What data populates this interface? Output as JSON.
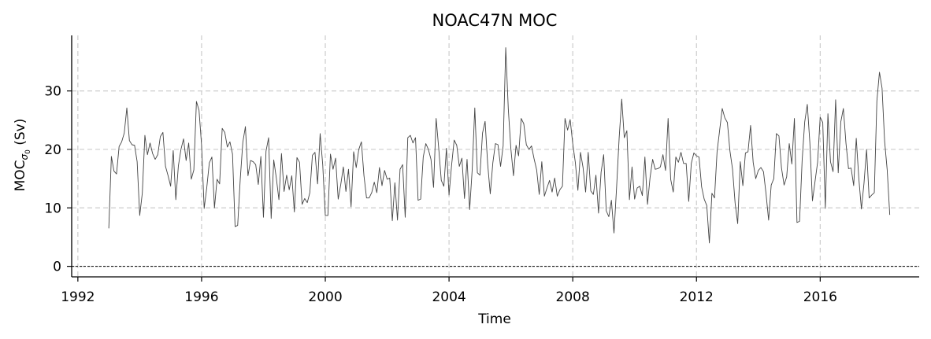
{
  "chart_data": {
    "type": "line",
    "title": "NOAC47N MOC",
    "xlabel": "Time",
    "ylabel": {
      "main": "MOC",
      "sub": "σ",
      "subsub": "0",
      "unit": " (Sv)"
    },
    "xlim": [
      1991.8,
      2019.2
    ],
    "ylim": [
      -1.8,
      39.5
    ],
    "xticks": [
      1992,
      1996,
      2000,
      2004,
      2008,
      2012,
      2016
    ],
    "yticks": [
      0,
      10,
      20,
      30
    ],
    "grid": true,
    "zero_line": 0,
    "colors": {
      "line": "#444444",
      "grid": "#cccccc",
      "zero": "#000000"
    },
    "series": [
      {
        "x_start": 1993.0,
        "x_step": 0.08333,
        "values": [
          6.5,
          18.8,
          16.3,
          15.8,
          20.5,
          21.3,
          22.8,
          27.1,
          21.5,
          20.8,
          20.7,
          17.9,
          8.7,
          12.5,
          22.4,
          19.1,
          21.1,
          19.3,
          18.3,
          19.1,
          22.2,
          22.9,
          17.1,
          15.5,
          13.7,
          19.8,
          11.4,
          17.2,
          20.0,
          21.8,
          18.1,
          21.1,
          14.9,
          16.5,
          28.2,
          26.7,
          20.7,
          9.9,
          13.4,
          17.7,
          18.7,
          10.0,
          14.9,
          14.1,
          23.6,
          22.9,
          20.4,
          21.3,
          19.2,
          6.8,
          7.0,
          14.9,
          21.2,
          23.9,
          15.5,
          18.1,
          17.9,
          17.4,
          14.0,
          18.8,
          8.4,
          19.7,
          22.0,
          8.2,
          18.2,
          15.1,
          11.4,
          19.3,
          12.8,
          15.6,
          13.1,
          15.5,
          9.3,
          18.6,
          17.8,
          10.6,
          11.6,
          10.9,
          12.6,
          19.0,
          19.5,
          14.1,
          22.7,
          17.4,
          8.7,
          8.7,
          19.2,
          16.6,
          18.5,
          11.5,
          14.0,
          17.0,
          12.8,
          16.6,
          10.2,
          19.6,
          16.9,
          20.0,
          21.3,
          15.5,
          11.7,
          11.7,
          12.6,
          14.4,
          12.6,
          16.9,
          13.8,
          16.4,
          14.9,
          15.1,
          7.8,
          14.3,
          7.9,
          16.6,
          17.4,
          8.4,
          22.0,
          22.4,
          21.1,
          22.0,
          11.3,
          11.5,
          18.7,
          21.0,
          20.0,
          18.3,
          13.5,
          25.3,
          20.2,
          14.7,
          13.7,
          20.2,
          12.2,
          17.3,
          21.6,
          20.7,
          17.1,
          18.5,
          11.6,
          18.3,
          9.7,
          16.6,
          27.1,
          16.0,
          15.6,
          22.8,
          24.8,
          17.5,
          12.4,
          17.7,
          21.0,
          20.8,
          17.1,
          20.6,
          37.4,
          26.9,
          20.1,
          15.5,
          20.7,
          18.9,
          25.3,
          24.4,
          20.8,
          20.0,
          20.6,
          18.4,
          16.5,
          12.3,
          17.9,
          12.0,
          13.4,
          14.7,
          12.7,
          15.1,
          12.0,
          13.1,
          13.7,
          25.3,
          23.3,
          25.1,
          21.0,
          17.8,
          13.0,
          19.5,
          16.9,
          12.7,
          19.5,
          12.9,
          12.3,
          15.6,
          9.1,
          16.1,
          19.1,
          9.5,
          8.5,
          11.3,
          5.7,
          13.4,
          21.9,
          28.6,
          22.0,
          23.2,
          11.4,
          17.0,
          11.5,
          13.4,
          13.7,
          12.1,
          18.7,
          10.6,
          15.2,
          18.3,
          16.6,
          16.7,
          17.0,
          19.1,
          16.4,
          25.3,
          14.9,
          12.7,
          18.7,
          17.8,
          19.5,
          17.6,
          17.6,
          11.1,
          17.6,
          19.4,
          18.9,
          18.7,
          13.6,
          11.5,
          10.4,
          4.0,
          12.5,
          11.7,
          19.6,
          23.3,
          27.0,
          25.4,
          24.6,
          19.7,
          16.6,
          10.8,
          7.3,
          17.9,
          13.8,
          19.4,
          19.6,
          24.1,
          17.8,
          15.0,
          16.4,
          16.9,
          16.2,
          12.4,
          7.9,
          13.9,
          15.0,
          22.7,
          22.3,
          16.8,
          13.9,
          15.3,
          21.0,
          17.5,
          25.3,
          7.5,
          7.7,
          18.1,
          24.7,
          27.7,
          21.1,
          11.2,
          14.5,
          17.8,
          25.5,
          24.6,
          9.9,
          26.1,
          17.9,
          16.2,
          28.5,
          16.0,
          24.7,
          27.0,
          21.1,
          16.7,
          16.8,
          13.8,
          21.9,
          15.0,
          9.8,
          14.2,
          20.0,
          11.7,
          12.2,
          12.6,
          28.3,
          33.2,
          30.5,
          21.4,
          16.5,
          8.8
        ]
      }
    ]
  }
}
